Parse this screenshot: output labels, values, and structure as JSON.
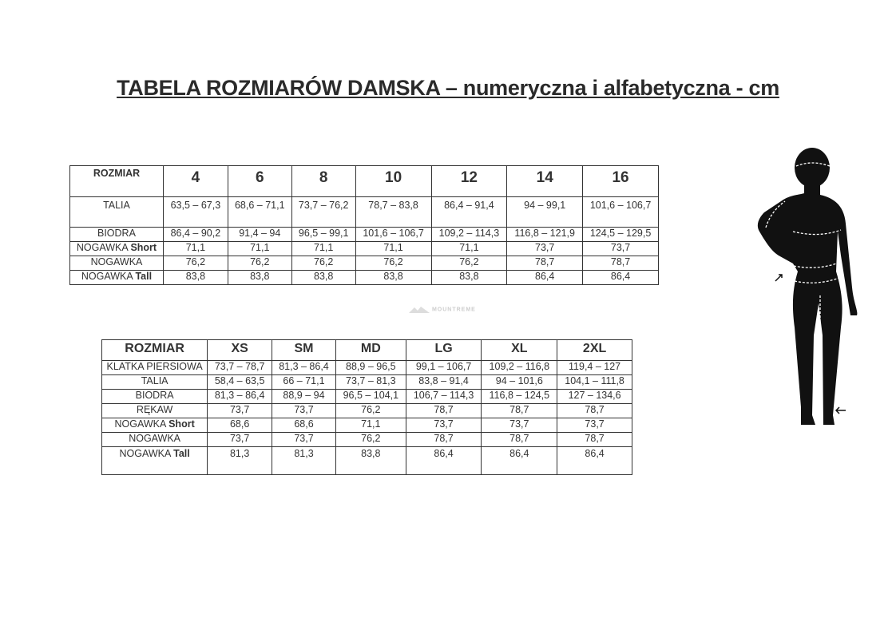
{
  "title": "TABELA ROZMIARÓW DAMSKA – numeryczna i alfabetyczna - cm",
  "watermark": "MOUNTREME",
  "numeric_table": {
    "header_label": "ROZMIAR",
    "sizes": [
      "4",
      "6",
      "8",
      "10",
      "12",
      "14",
      "16"
    ],
    "rows": [
      {
        "label": "TALIA",
        "suffix": "",
        "values": [
          "63,5 – 67,3",
          "68,6 – 71,1",
          "73,7 – 76,2",
          "78,7 – 83,8",
          "86,4 – 91,4",
          "94 – 99,1",
          "101,6 – 106,7"
        ]
      },
      {
        "label": "BIODRA",
        "suffix": "",
        "values": [
          "86,4 – 90,2",
          "91,4 – 94",
          "96,5 – 99,1",
          "101,6 – 106,7",
          "109,2 – 114,3",
          "116,8 – 121,9",
          "124,5 – 129,5"
        ]
      },
      {
        "label": "NOGAWKA ",
        "suffix": "Short",
        "values": [
          "71,1",
          "71,1",
          "71,1",
          "71,1",
          "71,1",
          "73,7",
          "73,7"
        ]
      },
      {
        "label": "NOGAWKA",
        "suffix": "",
        "values": [
          "76,2",
          "76,2",
          "76,2",
          "76,2",
          "76,2",
          "78,7",
          "78,7"
        ]
      },
      {
        "label": "NOGAWKA ",
        "suffix": "Tall",
        "values": [
          "83,8",
          "83,8",
          "83,8",
          "83,8",
          "83,8",
          "86,4",
          "86,4"
        ]
      }
    ]
  },
  "alpha_table": {
    "header_label": "ROZMIAR",
    "sizes": [
      "XS",
      "SM",
      "MD",
      "LG",
      "XL",
      "2XL"
    ],
    "rows": [
      {
        "label": "KLATKA PIERSIOWA",
        "suffix": "",
        "values": [
          "73,7 – 78,7",
          "81,3 – 86,4",
          "88,9 – 96,5",
          "99,1 – 106,7",
          "109,2 – 116,8",
          "119,4 – 127"
        ]
      },
      {
        "label": "TALIA",
        "suffix": "",
        "values": [
          "58,4 – 63,5",
          "66 – 71,1",
          "73,7 – 81,3",
          "83,8 – 91,4",
          "94 – 101,6",
          "104,1 – 111,8"
        ]
      },
      {
        "label": "BIODRA",
        "suffix": "",
        "values": [
          "81,3 – 86,4",
          "88,9 – 94",
          "96,5 – 104,1",
          "106,7 – 114,3",
          "116,8 – 124,5",
          "127 – 134,6"
        ]
      },
      {
        "label": "RĘKAW",
        "suffix": "",
        "values": [
          "73,7",
          "73,7",
          "76,2",
          "78,7",
          "78,7",
          "78,7"
        ]
      },
      {
        "label": "NOGAWKA ",
        "suffix": "Short",
        "values": [
          "68,6",
          "68,6",
          "71,1",
          "73,7",
          "73,7",
          "73,7"
        ]
      },
      {
        "label": "NOGAWKA",
        "suffix": "",
        "values": [
          "73,7",
          "73,7",
          "76,2",
          "78,7",
          "78,7",
          "78,7"
        ]
      },
      {
        "label": "NOGAWKA ",
        "suffix": "Tall",
        "values": [
          "81,3",
          "81,3",
          "83,8",
          "86,4",
          "86,4",
          "86,4"
        ]
      }
    ]
  }
}
